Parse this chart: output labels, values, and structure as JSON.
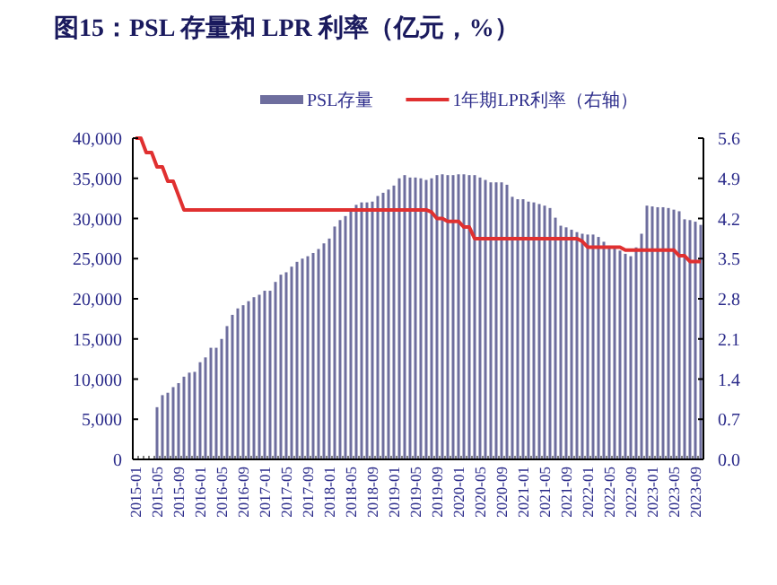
{
  "chart_data": {
    "type": "bar",
    "title": "图15：PSL 存量和 LPR 利率（亿元，%）",
    "categories": [
      "2015-01",
      null,
      null,
      null,
      "2015-05",
      null,
      null,
      null,
      "2015-09",
      null,
      null,
      null,
      "2016-01",
      null,
      null,
      null,
      "2016-05",
      null,
      null,
      null,
      "2016-09",
      null,
      null,
      null,
      "2017-01",
      null,
      null,
      null,
      "2017-05",
      null,
      null,
      null,
      "2017-09",
      null,
      null,
      null,
      "2018-01",
      null,
      null,
      null,
      "2018-05",
      null,
      null,
      null,
      "2018-09",
      null,
      null,
      null,
      "2019-01",
      null,
      null,
      null,
      "2019-05",
      null,
      null,
      null,
      "2019-09",
      null,
      null,
      null,
      "2020-01",
      null,
      null,
      null,
      "2020-05",
      null,
      null,
      null,
      "2020-09",
      null,
      null,
      null,
      "2021-01",
      null,
      null,
      null,
      "2021-05",
      null,
      null,
      null,
      "2021-09",
      null,
      null,
      null,
      "2022-01",
      null,
      null,
      null,
      "2022-05",
      null,
      null,
      null,
      "2022-09",
      null,
      null,
      null,
      "2023-01",
      null,
      null,
      null,
      "2023-05",
      null,
      null,
      null,
      "2023-09",
      null
    ],
    "series": [
      {
        "name": "PSL存量",
        "color": "#6e6e9e",
        "values": [
          null,
          null,
          null,
          null,
          6500,
          8000,
          8300,
          9000,
          9500,
          10300,
          10800,
          10900,
          12100,
          12700,
          13900,
          13900,
          15000,
          16600,
          18000,
          18800,
          19200,
          19700,
          20200,
          20500,
          21000,
          21000,
          22100,
          23000,
          23300,
          24000,
          24600,
          25000,
          25300,
          25700,
          26200,
          26900,
          27500,
          29000,
          29800,
          30300,
          31200,
          31700,
          32000,
          32000,
          32100,
          32800,
          33200,
          33600,
          34100,
          35000,
          35400,
          35100,
          35100,
          35000,
          34800,
          35000,
          35400,
          35500,
          35400,
          35400,
          35500,
          35500,
          35400,
          35400,
          35100,
          34800,
          34500,
          34500,
          34500,
          34200,
          32700,
          32400,
          32400,
          32100,
          32000,
          31800,
          31600,
          31300,
          30100,
          29100,
          28900,
          28600,
          28300,
          28100,
          28000,
          28000,
          27700,
          27100,
          26600,
          26400,
          26000,
          25600,
          25300,
          26400,
          28100,
          31600,
          31500,
          31400,
          31400,
          31300,
          31100,
          30900,
          29900,
          29800,
          29600,
          29200
        ]
      },
      {
        "name": "1年期LPR利率（右轴）",
        "type": "line",
        "axis": "y2",
        "color": "#e03030",
        "values": [
          5.6,
          5.6,
          5.35,
          5.35,
          5.1,
          5.1,
          4.85,
          4.85,
          4.6,
          4.35,
          4.35,
          4.35,
          4.35,
          4.35,
          4.35,
          4.35,
          4.35,
          4.35,
          4.35,
          4.35,
          4.35,
          4.35,
          4.35,
          4.35,
          4.35,
          4.35,
          4.35,
          4.35,
          4.35,
          4.35,
          4.35,
          4.35,
          4.35,
          4.35,
          4.35,
          4.35,
          4.35,
          4.35,
          4.35,
          4.35,
          4.35,
          4.35,
          4.35,
          4.35,
          4.35,
          4.35,
          4.35,
          4.35,
          4.35,
          4.35,
          4.35,
          4.35,
          4.35,
          4.35,
          4.35,
          4.31,
          4.2,
          4.2,
          4.15,
          4.15,
          4.15,
          4.05,
          4.05,
          3.85,
          3.85,
          3.85,
          3.85,
          3.85,
          3.85,
          3.85,
          3.85,
          3.85,
          3.85,
          3.85,
          3.85,
          3.85,
          3.85,
          3.85,
          3.85,
          3.85,
          3.85,
          3.85,
          3.85,
          3.8,
          3.7,
          3.7,
          3.7,
          3.7,
          3.7,
          3.7,
          3.7,
          3.65,
          3.65,
          3.65,
          3.65,
          3.65,
          3.65,
          3.65,
          3.65,
          3.65,
          3.65,
          3.55,
          3.55,
          3.45,
          3.45,
          3.45
        ]
      }
    ],
    "ylim": [
      0,
      40000
    ],
    "yticks": [
      0,
      {
        "value": 5000,
        "label": "5,000"
      },
      {
        "value": 10000,
        "label": "10,000"
      },
      {
        "value": 15000,
        "label": "15,000"
      },
      {
        "value": 20000,
        "label": "20,000"
      },
      {
        "value": 25000,
        "label": "25,000"
      },
      {
        "value": 30000,
        "label": "30,000"
      },
      {
        "value": 35000,
        "label": "35,000"
      },
      {
        "value": 40000,
        "label": "40,000"
      }
    ],
    "y2lim": [
      0,
      5.6
    ],
    "y2ticks": [
      {
        "value": 0,
        "label": "0.0"
      },
      0.7,
      1.4,
      2.1,
      2.8,
      3.5,
      4.2,
      4.9,
      5.6
    ],
    "legend": "top"
  }
}
